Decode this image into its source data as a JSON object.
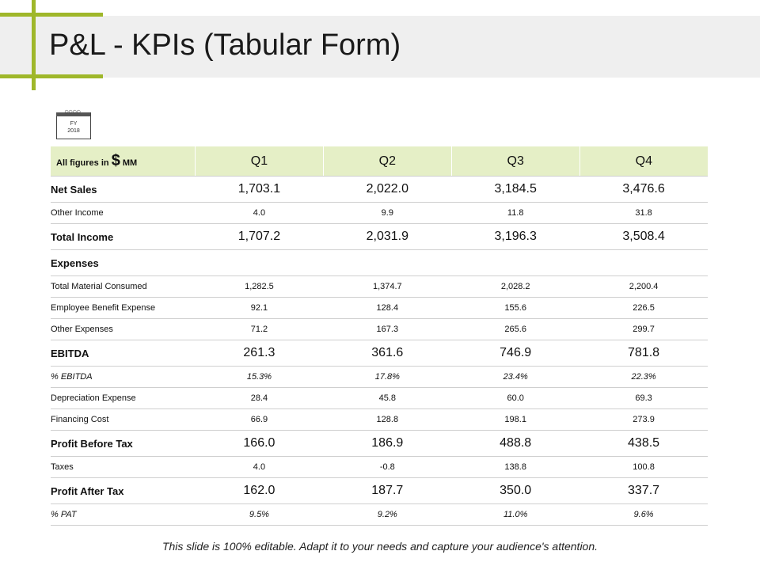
{
  "title": "P&L - KPIs (Tabular Form)",
  "calendar": {
    "line1": "FY",
    "line2": "2018"
  },
  "table": {
    "header": {
      "figures_prefix": "All figures in",
      "currency_symbol": "$",
      "figures_unit": "MM",
      "columns": [
        "Q1",
        "Q2",
        "Q3",
        "Q4"
      ]
    },
    "rows": [
      {
        "label": "Net Sales",
        "values": [
          "1,703.1",
          "2,022.0",
          "3,184.5",
          "3,476.6"
        ]
      },
      {
        "label": "Other Income",
        "values": [
          "4.0",
          "9.9",
          "11.8",
          "31.8"
        ]
      },
      {
        "label": "Total Income",
        "values": [
          "1,707.2",
          "2,031.9",
          "3,196.3",
          "3,508.4"
        ]
      },
      {
        "label": "Expenses",
        "values": [
          "",
          "",
          "",
          ""
        ]
      },
      {
        "label": "Total Material Consumed",
        "values": [
          "1,282.5",
          "1,374.7",
          "2,028.2",
          "2,200.4"
        ]
      },
      {
        "label": "Employee Benefit Expense",
        "values": [
          "92.1",
          "128.4",
          "155.6",
          "226.5"
        ]
      },
      {
        "label": "Other Expenses",
        "values": [
          "71.2",
          "167.3",
          "265.6",
          "299.7"
        ]
      },
      {
        "label": "EBITDA",
        "values": [
          "261.3",
          "361.6",
          "746.9",
          "781.8"
        ]
      },
      {
        "label": "% EBITDA",
        "values": [
          "15.3%",
          "17.8%",
          "23.4%",
          "22.3%"
        ]
      },
      {
        "label": "Depreciation Expense",
        "values": [
          "28.4",
          "45.8",
          "60.0",
          "69.3"
        ]
      },
      {
        "label": "Financing Cost",
        "values": [
          "66.9",
          "128.8",
          "198.1",
          "273.9"
        ]
      },
      {
        "label": "Profit Before Tax",
        "values": [
          "166.0",
          "186.9",
          "488.8",
          "438.5"
        ]
      },
      {
        "label": "Taxes",
        "values": [
          "4.0",
          "-0.8",
          "138.8",
          "100.8"
        ]
      },
      {
        "label": "Profit After Tax",
        "values": [
          "162.0",
          "187.7",
          "350.0",
          "337.7"
        ]
      },
      {
        "label": "% PAT",
        "values": [
          "9.5%",
          "9.2%",
          "11.0%",
          "9.6%"
        ]
      }
    ]
  },
  "footer": "This slide is 100% editable. Adapt it to your needs and capture your audience's attention.",
  "colors": {
    "accent": "#9fb72a",
    "header_fill": "#e5efc6",
    "title_band": "#efefef"
  }
}
